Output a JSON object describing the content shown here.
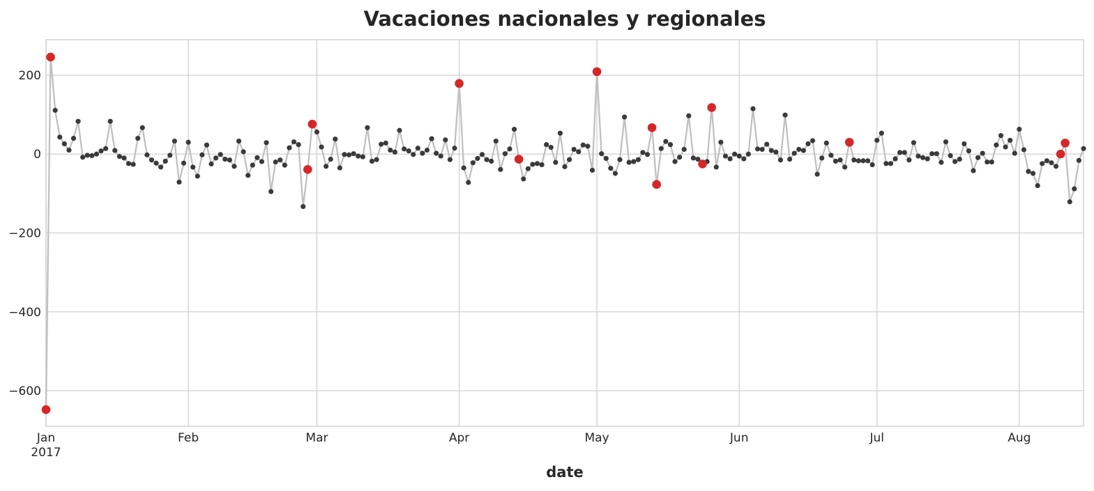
{
  "chart_data": {
    "type": "line",
    "title": "Vacaciones nacionales y regionales",
    "xlabel": "date",
    "ylabel": "",
    "xlim": [
      "2017-01-01",
      "2017-08-15"
    ],
    "ylim": [
      -690,
      290
    ],
    "y_ticks": [
      200,
      0,
      -200,
      -400,
      -600
    ],
    "y_tick_labels": [
      "200",
      "0",
      "−200",
      "−400",
      "−600"
    ],
    "x_ticks": [
      {
        "date": "2017-01-01",
        "label": "Jan",
        "sublabel": "2017"
      },
      {
        "date": "2017-02-01",
        "label": "Feb",
        "sublabel": ""
      },
      {
        "date": "2017-03-01",
        "label": "Mar",
        "sublabel": ""
      },
      {
        "date": "2017-04-01",
        "label": "Apr",
        "sublabel": ""
      },
      {
        "date": "2017-05-01",
        "label": "May",
        "sublabel": ""
      },
      {
        "date": "2017-06-01",
        "label": "Jun",
        "sublabel": ""
      },
      {
        "date": "2017-07-01",
        "label": "Jul",
        "sublabel": ""
      },
      {
        "date": "2017-08-01",
        "label": "Aug",
        "sublabel": ""
      }
    ],
    "grid": true,
    "line_color": "#c0c0c0",
    "point_color": "#3a3a3a",
    "holiday_color": "#d62728",
    "start_date": "2017-01-01",
    "series": [
      {
        "values": [
          -648,
          246,
          111,
          43,
          26,
          10,
          40,
          83,
          -8,
          -3,
          -4,
          0,
          8,
          14,
          83,
          9,
          -6,
          -10,
          -24,
          -26,
          40,
          67,
          -2,
          -15,
          -23,
          -33,
          -18,
          -3,
          33,
          -71,
          -23,
          30,
          -33,
          -56,
          -2,
          23,
          -25,
          -10,
          -1,
          -13,
          -15,
          -31,
          33,
          6,
          -54,
          -28,
          -9,
          -19,
          29,
          -95,
          -20,
          -15,
          -28,
          16,
          31,
          24,
          -133,
          -39,
          76,
          56,
          18,
          -31,
          -13,
          38,
          -35,
          -1,
          -2,
          1,
          -5,
          -7,
          67,
          -18,
          -14,
          25,
          28,
          10,
          5,
          60,
          13,
          8,
          -1,
          15,
          2,
          10,
          39,
          2,
          -5,
          36,
          -14,
          15,
          179,
          -35,
          -72,
          -22,
          -11,
          -1,
          -14,
          -18,
          33,
          -39,
          1,
          13,
          63,
          -13,
          -63,
          -37,
          -26,
          -24,
          -27,
          24,
          17,
          -21,
          53,
          -32,
          -14,
          12,
          6,
          23,
          20,
          -41,
          209,
          1,
          -11,
          -36,
          -49,
          -14,
          94,
          -21,
          -19,
          -14,
          4,
          -1,
          67,
          -77,
          14,
          32,
          24,
          -19,
          -8,
          12,
          97,
          -10,
          -13,
          -25,
          -19,
          118,
          -33,
          30,
          -5,
          -12,
          0,
          -5,
          -12,
          0,
          115,
          13,
          12,
          25,
          9,
          5,
          -15,
          99,
          -13,
          2,
          12,
          9,
          26,
          34,
          -51,
          -10,
          28,
          -3,
          -18,
          -15,
          -33,
          30,
          -15,
          -17,
          -17,
          -17,
          -27,
          35,
          53,
          -24,
          -24,
          -12,
          4,
          4,
          -15,
          29,
          -5,
          -9,
          -12,
          1,
          1,
          -21,
          31,
          -4,
          -19,
          -13,
          26,
          8,
          -42,
          -9,
          2,
          -20,
          -20,
          23,
          47,
          18,
          35,
          2,
          63,
          11,
          -44,
          -49,
          -80,
          -24,
          -17,
          -22,
          -31,
          0,
          28,
          -121,
          -88,
          -16,
          14
        ],
        "holidays": [
          "2017-01-01",
          "2017-01-02",
          "2017-02-27",
          "2017-02-28",
          "2017-04-01",
          "2017-04-14",
          "2017-05-01",
          "2017-05-13",
          "2017-05-14",
          "2017-05-24",
          "2017-05-26",
          "2017-06-25",
          "2017-08-10",
          "2017-08-11"
        ]
      }
    ]
  }
}
